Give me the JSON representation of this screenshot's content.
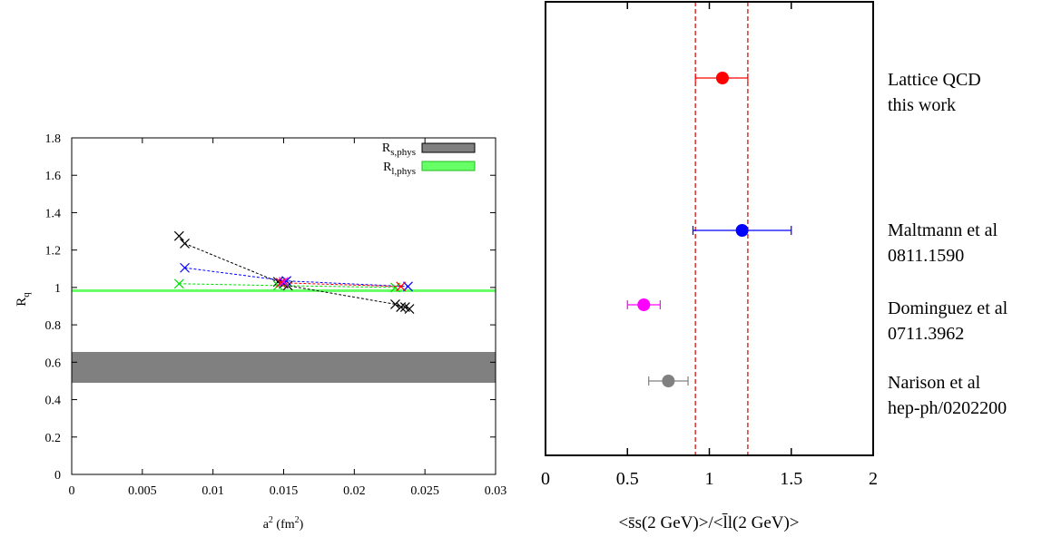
{
  "chart_data": [
    {
      "type": "scatter",
      "xlabel": "a",
      "xlabel_sup": "2",
      "xlabel_unit_open": " (fm",
      "xlabel_unit_sup": "2",
      "xlabel_unit_close": ")",
      "ylabel": "R",
      "ylabel_sub": "q",
      "xlim": [
        0,
        0.03
      ],
      "ylim": [
        0,
        1.8
      ],
      "xticks": [
        "0",
        "0.005",
        "0.01",
        "0.015",
        "0.02",
        "0.025",
        "0.03"
      ],
      "xtick_values": [
        0,
        0.005,
        0.01,
        0.015,
        0.02,
        0.025,
        0.03
      ],
      "yticks": [
        "0",
        "0.2",
        "0.4",
        "0.6",
        "0.8",
        "1",
        "1.2",
        "1.4",
        "1.6",
        "1.8"
      ],
      "ytick_values": [
        0,
        0.2,
        0.4,
        0.6,
        0.8,
        1.0,
        1.2,
        1.4,
        1.6,
        1.8
      ],
      "legend_position": "top-right",
      "bands": [
        {
          "label": "R",
          "label_sub": "s,phys",
          "lower": 0.49,
          "upper": 0.655,
          "color": "#808080"
        },
        {
          "label": "R",
          "label_sub": "l,phys",
          "lower": 0.98,
          "upper": 0.99,
          "color": "#66ff66"
        }
      ],
      "series": [
        {
          "color": "#000000",
          "x": [
            0.0076,
            0.008,
            0.0146,
            0.015,
            0.0153,
            0.0229,
            0.0233,
            0.0236,
            0.0239
          ],
          "y": [
            1.275,
            1.235,
            1.03,
            1.02,
            1.01,
            0.91,
            0.895,
            0.895,
            0.885
          ]
        },
        {
          "color": "#0000ff",
          "x": [
            0.008,
            0.0152,
            0.0238
          ],
          "y": [
            1.105,
            1.035,
            1.005
          ]
        },
        {
          "color": "#00dd00",
          "x": [
            0.0076,
            0.0146,
            0.0229
          ],
          "y": [
            1.02,
            1.01,
            1.0
          ]
        },
        {
          "color": "#ff0000",
          "x": [
            0.0148,
            0.0233
          ],
          "y": [
            1.025,
            1.005
          ]
        },
        {
          "color": "#ff00ff",
          "x": [
            0.015
          ],
          "y": [
            1.03
          ]
        }
      ]
    },
    {
      "type": "scatter",
      "xlabel": "<s̄s(2 GeV)>/<l̄l(2 GeV)>",
      "xlim": [
        0,
        2
      ],
      "xticks": [
        "0",
        "0.5",
        "1",
        "1.5",
        "2"
      ],
      "xtick_values": [
        0,
        0.5,
        1,
        1.5,
        2
      ],
      "band_lower": 0.915,
      "band_upper": 1.235,
      "band_color": "#cc0000",
      "points": [
        {
          "label_line1": "Lattice QCD",
          "label_line2": "this work",
          "value": 1.08,
          "err_low": 0.915,
          "err_high": 1.235,
          "color": "#ff0000"
        },
        {
          "label_line1": "Maltmann et al",
          "label_line2": "0811.1590",
          "value": 1.2,
          "err_low": 0.9,
          "err_high": 1.5,
          "color": "#0000ff"
        },
        {
          "label_line1": "Dominguez et al",
          "label_line2": "0711.3962",
          "value": 0.6,
          "err_low": 0.5,
          "err_high": 0.7,
          "color": "#ff00ff"
        },
        {
          "label_line1": "Narison et al",
          "label_line2": "hep-ph/0202200",
          "value": 0.75,
          "err_low": 0.63,
          "err_high": 0.87,
          "color": "#808080"
        }
      ]
    }
  ]
}
